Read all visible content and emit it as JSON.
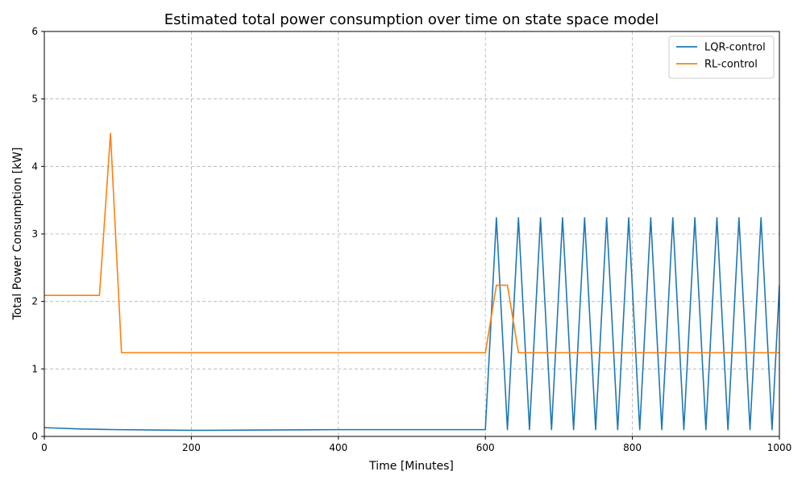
{
  "chart_data": {
    "type": "line",
    "title": "Estimated total power consumption over time on state space model",
    "xlabel": "Time [Minutes]",
    "ylabel": "Total Power Consumption [kW]",
    "xlim": [
      0,
      1000
    ],
    "ylim": [
      0,
      6
    ],
    "xticks": [
      0,
      200,
      400,
      600,
      800,
      1000
    ],
    "yticks": [
      0,
      1,
      2,
      3,
      4,
      5,
      6
    ],
    "grid": true,
    "legend_position": "top-right",
    "series": [
      {
        "name": "LQR-control",
        "color": "#1f77b4",
        "x": [
          0,
          50,
          100,
          150,
          200,
          225,
          300,
          400,
          500,
          600,
          615,
          630,
          645,
          660,
          675,
          690,
          705,
          720,
          735,
          750,
          765,
          780,
          795,
          810,
          825,
          840,
          855,
          870,
          885,
          900,
          915,
          930,
          945,
          960,
          975,
          990,
          1000
        ],
        "y": [
          0.13,
          0.11,
          0.1,
          0.095,
          0.09,
          0.09,
          0.095,
          0.1,
          0.1,
          0.1,
          3.24,
          0.1,
          3.24,
          0.1,
          3.24,
          0.1,
          3.24,
          0.1,
          3.24,
          0.1,
          3.24,
          0.1,
          3.24,
          0.1,
          3.24,
          0.1,
          3.24,
          0.1,
          3.24,
          0.1,
          3.24,
          0.1,
          3.24,
          0.1,
          3.24,
          0.1,
          2.24
        ]
      },
      {
        "name": "RL-control",
        "color": "#ff7f0e",
        "x": [
          0,
          75,
          90,
          105,
          600,
          615,
          630,
          645,
          1000
        ],
        "y": [
          2.09,
          2.09,
          4.49,
          1.24,
          1.24,
          2.24,
          2.24,
          1.24,
          1.24
        ]
      }
    ]
  }
}
